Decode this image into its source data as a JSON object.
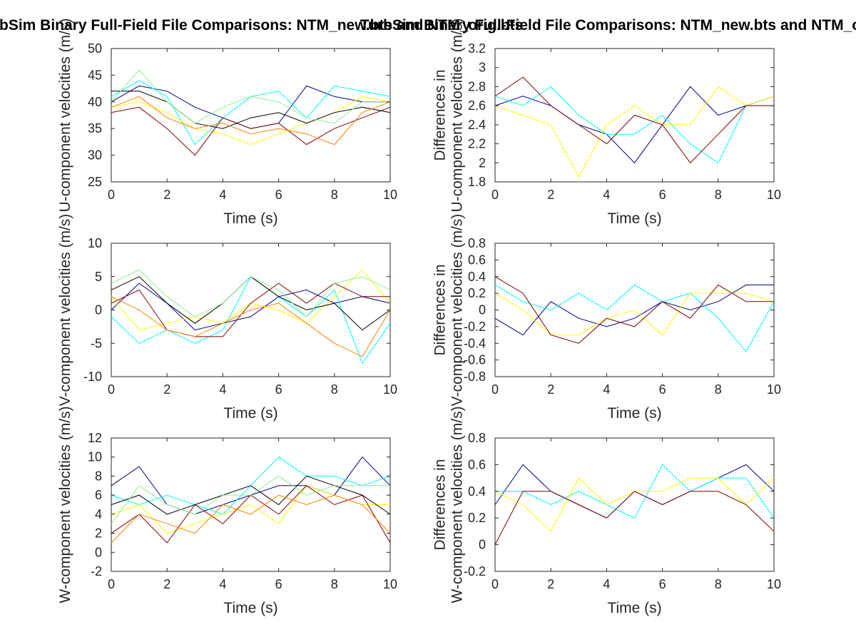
{
  "figure": {
    "title_left": "TurbSim Binary Full-Field File Comparisons: NTM_new.bts and NTM_orig.bts",
    "title_right": "TurbSim Binary Full-Field File Comparisons: NTM_new.bts and NTM_orig.bts",
    "colors": [
      "#00008f",
      "#00ffff",
      "#ffff00",
      "#800000"
    ]
  },
  "chart_data": [
    {
      "id": "u-velocities",
      "type": "line",
      "xlabel": "Time (s)",
      "ylabel": "U-component velocities (m/s)",
      "xlim": [
        0,
        10
      ],
      "ylim": [
        25,
        50
      ],
      "xticks": [
        0,
        2,
        4,
        6,
        8,
        10
      ],
      "yticks": [
        25,
        30,
        35,
        40,
        45,
        50
      ],
      "x": [
        0,
        1,
        2,
        3,
        4,
        5,
        6,
        7,
        8,
        9,
        10
      ],
      "series": [
        {
          "color": "#00008f",
          "values": [
            40,
            43,
            42,
            39,
            37,
            35,
            36,
            43,
            41,
            40,
            40
          ]
        },
        {
          "color": "#00ffff",
          "values": [
            41,
            44,
            41,
            32,
            37,
            41,
            42,
            37,
            43,
            42,
            41
          ]
        },
        {
          "color": "#ffff00",
          "values": [
            39,
            40,
            38,
            35,
            34,
            32,
            34,
            36,
            38,
            41,
            40
          ]
        },
        {
          "color": "#800000",
          "values": [
            38,
            39,
            35,
            30,
            37,
            35,
            36,
            32,
            35,
            37,
            39
          ]
        },
        {
          "color": "#000000",
          "values": [
            42,
            42,
            40,
            36,
            35,
            37,
            38,
            36,
            38,
            39,
            38
          ]
        },
        {
          "color": "#90ee90",
          "values": [
            40,
            46,
            40,
            36,
            39,
            41,
            40,
            37,
            36,
            40,
            40
          ]
        },
        {
          "color": "#ff8000",
          "values": [
            39,
            41,
            37,
            35,
            36,
            34,
            35,
            34,
            32,
            38,
            40
          ]
        }
      ]
    },
    {
      "id": "u-differences",
      "type": "line",
      "xlabel": "Time (s)",
      "ylabel": "Differences in U-component velocities (m/s)",
      "xlim": [
        0,
        10
      ],
      "ylim": [
        1.8,
        3.2
      ],
      "xticks": [
        0,
        2,
        4,
        6,
        8,
        10
      ],
      "yticks": [
        1.8,
        2,
        2.2,
        2.4,
        2.6,
        2.8,
        3,
        3.2
      ],
      "x": [
        0,
        1,
        2,
        3,
        4,
        5,
        6,
        7,
        8,
        9,
        10
      ],
      "series": [
        {
          "color": "#00008f",
          "values": [
            2.6,
            2.7,
            2.6,
            2.4,
            2.3,
            2.0,
            2.4,
            2.8,
            2.5,
            2.6,
            2.7
          ]
        },
        {
          "color": "#00ffff",
          "values": [
            2.7,
            2.6,
            2.8,
            2.5,
            2.3,
            2.3,
            2.5,
            2.2,
            2.0,
            2.6,
            2.6
          ]
        },
        {
          "color": "#ffff00",
          "values": [
            2.6,
            2.5,
            2.4,
            1.85,
            2.4,
            2.6,
            2.4,
            2.4,
            2.8,
            2.6,
            2.7
          ]
        },
        {
          "color": "#800000",
          "values": [
            2.7,
            2.9,
            2.6,
            2.4,
            2.2,
            2.5,
            2.4,
            2.0,
            2.3,
            2.6,
            2.6
          ]
        }
      ]
    },
    {
      "id": "v-velocities",
      "type": "line",
      "xlabel": "Time (s)",
      "ylabel": "V-component velocities (m/s)",
      "xlim": [
        0,
        10
      ],
      "ylim": [
        -10,
        10
      ],
      "xticks": [
        0,
        2,
        4,
        6,
        8,
        10
      ],
      "yticks": [
        -10,
        -5,
        0,
        5,
        10
      ],
      "x": [
        0,
        1,
        2,
        3,
        4,
        5,
        6,
        7,
        8,
        9,
        10
      ],
      "series": [
        {
          "color": "#00008f",
          "values": [
            0,
            4,
            1,
            -3,
            -2,
            -1,
            2,
            3,
            1,
            2,
            1
          ]
        },
        {
          "color": "#00ffff",
          "values": [
            -1,
            -5,
            -3,
            -5,
            -3,
            5,
            2,
            -1,
            3,
            -8,
            -2
          ]
        },
        {
          "color": "#ffff00",
          "values": [
            2,
            -3,
            -2,
            -1,
            -2,
            1,
            0,
            -2,
            2,
            6,
            1
          ]
        },
        {
          "color": "#800000",
          "values": [
            1,
            3,
            -3,
            -4,
            -4,
            1,
            4,
            1,
            4,
            2,
            2
          ]
        },
        {
          "color": "#000000",
          "values": [
            3,
            5,
            1,
            -2,
            1,
            5,
            2,
            0,
            1,
            -3,
            0
          ]
        },
        {
          "color": "#90ee90",
          "values": [
            4,
            6,
            2,
            -1,
            1,
            5,
            3,
            -1,
            4,
            5,
            3
          ]
        },
        {
          "color": "#ff8000",
          "values": [
            2,
            0,
            -3,
            -4,
            -2,
            0,
            1,
            -2,
            -5,
            -7,
            0
          ]
        }
      ]
    },
    {
      "id": "v-differences",
      "type": "line",
      "xlabel": "Time (s)",
      "ylabel": "Differences in V-component velocities (m/s)",
      "xlim": [
        0,
        10
      ],
      "ylim": [
        -0.8,
        0.8
      ],
      "xticks": [
        0,
        2,
        4,
        6,
        8,
        10
      ],
      "yticks": [
        -0.8,
        -0.6,
        -0.4,
        -0.2,
        0,
        0.2,
        0.4,
        0.6,
        0.8
      ],
      "x": [
        0,
        1,
        2,
        3,
        4,
        5,
        6,
        7,
        8,
        9,
        10
      ],
      "series": [
        {
          "color": "#00008f",
          "values": [
            -0.1,
            -0.3,
            0.1,
            -0.1,
            -0.2,
            -0.1,
            0.1,
            0.0,
            0.1,
            0.3,
            0.3
          ]
        },
        {
          "color": "#00ffff",
          "values": [
            0.3,
            0.1,
            0.0,
            0.2,
            0.0,
            0.3,
            0.1,
            0.2,
            -0.1,
            -0.5,
            0.1
          ]
        },
        {
          "color": "#ffff00",
          "values": [
            0.2,
            0.0,
            -0.3,
            -0.3,
            -0.1,
            0.0,
            -0.3,
            0.2,
            0.2,
            0.2,
            0.1
          ]
        },
        {
          "color": "#800000",
          "values": [
            0.4,
            0.2,
            -0.3,
            -0.4,
            -0.1,
            -0.2,
            0.1,
            -0.1,
            0.3,
            0.1,
            0.1
          ]
        }
      ]
    },
    {
      "id": "w-velocities",
      "type": "line",
      "xlabel": "Time (s)",
      "ylabel": "W-component velocities (m/s)",
      "xlim": [
        0,
        10
      ],
      "ylim": [
        -2,
        12
      ],
      "xticks": [
        0,
        2,
        4,
        6,
        8,
        10
      ],
      "yticks": [
        -2,
        0,
        2,
        4,
        6,
        8,
        10,
        12
      ],
      "x": [
        0,
        1,
        2,
        3,
        4,
        5,
        6,
        7,
        8,
        9,
        10
      ],
      "series": [
        {
          "color": "#00008f",
          "values": [
            7,
            9,
            5,
            4,
            5,
            6,
            7,
            7,
            6,
            10,
            7
          ]
        },
        {
          "color": "#00ffff",
          "values": [
            6,
            5,
            6,
            5,
            4,
            7,
            10,
            8,
            8,
            7,
            8
          ]
        },
        {
          "color": "#ffff00",
          "values": [
            4,
            5,
            2,
            3,
            4,
            5,
            3,
            7,
            6,
            5,
            5
          ]
        },
        {
          "color": "#800000",
          "values": [
            2,
            4,
            1,
            5,
            3,
            6,
            4,
            7,
            5,
            6,
            1
          ]
        },
        {
          "color": "#000000",
          "values": [
            5,
            6,
            4,
            5,
            6,
            7,
            5,
            8,
            7,
            6,
            4
          ]
        },
        {
          "color": "#90ee90",
          "values": [
            3,
            7,
            5,
            4,
            6,
            6,
            8,
            6,
            7,
            7,
            7
          ]
        },
        {
          "color": "#ff8000",
          "values": [
            1,
            4,
            3,
            2,
            5,
            4,
            6,
            5,
            6,
            5,
            2
          ]
        }
      ]
    },
    {
      "id": "w-differences",
      "type": "line",
      "xlabel": "Time (s)",
      "ylabel": "Differences in W-component velocities (m/s)",
      "xlim": [
        0,
        10
      ],
      "ylim": [
        -0.2,
        0.8
      ],
      "xticks": [
        0,
        2,
        4,
        6,
        8,
        10
      ],
      "yticks": [
        -0.2,
        0,
        0.2,
        0.4,
        0.6,
        0.8
      ],
      "x": [
        0,
        1,
        2,
        3,
        4,
        5,
        6,
        7,
        8,
        9,
        10
      ],
      "series": [
        {
          "color": "#00008f",
          "values": [
            0.3,
            0.6,
            0.4,
            0.3,
            0.2,
            0.4,
            0.3,
            0.4,
            0.5,
            0.6,
            0.4
          ]
        },
        {
          "color": "#00ffff",
          "values": [
            0.4,
            0.4,
            0.3,
            0.4,
            0.3,
            0.2,
            0.6,
            0.4,
            0.5,
            0.5,
            0.2
          ]
        },
        {
          "color": "#ffff00",
          "values": [
            0.4,
            0.3,
            0.1,
            0.5,
            0.3,
            0.4,
            0.4,
            0.5,
            0.5,
            0.3,
            0.5
          ]
        },
        {
          "color": "#800000",
          "values": [
            0.0,
            0.4,
            0.4,
            0.3,
            0.2,
            0.4,
            0.3,
            0.4,
            0.4,
            0.3,
            0.1
          ]
        }
      ]
    }
  ]
}
